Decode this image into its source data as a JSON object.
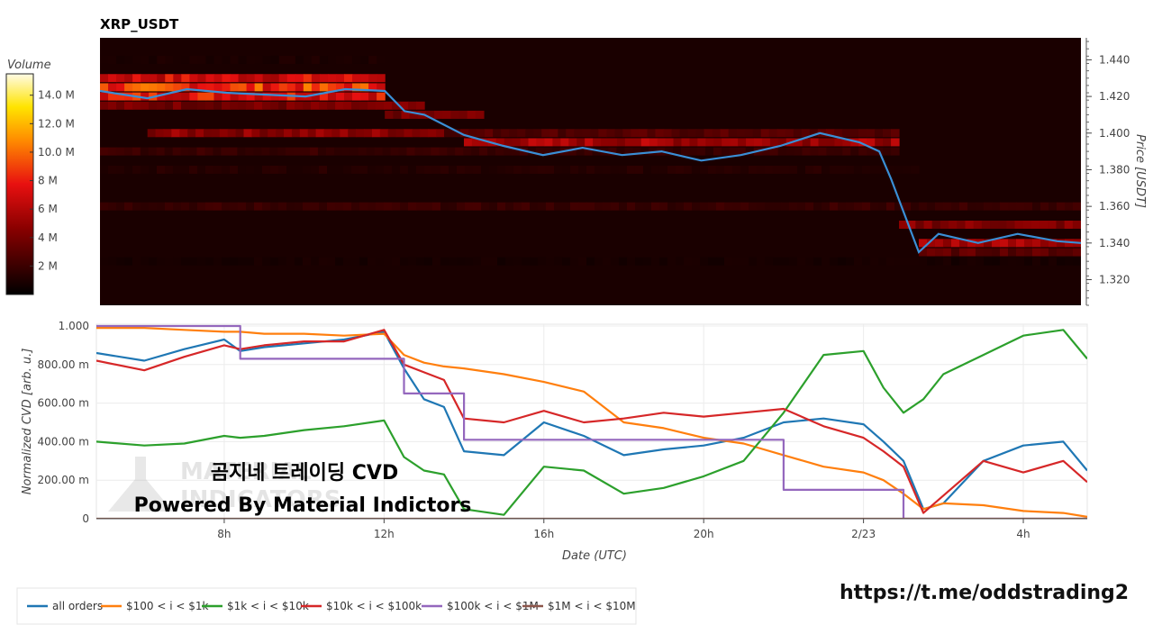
{
  "title": "XRP_USDT",
  "colorbar": {
    "label": "Volume",
    "ticks": [
      "14.0 M",
      "12.0 M",
      "10.0 M",
      "8 M",
      "6 M",
      "4 M",
      "2 M"
    ],
    "tick_values": [
      14,
      12,
      10,
      8,
      6,
      4,
      2
    ],
    "max": 15.5
  },
  "x_axis": {
    "label": "Date (UTC)",
    "ticks": [
      "8h",
      "12h",
      "16h",
      "20h",
      "2/23",
      "4h"
    ],
    "tick_hours": [
      8,
      12,
      16,
      20,
      24,
      28
    ],
    "range_hours": [
      4.8,
      29.6
    ]
  },
  "price_axis": {
    "label": "Price [USDT]",
    "ticks": [
      "1.440",
      "1.420",
      "1.400",
      "1.380",
      "1.360",
      "1.340",
      "1.320"
    ],
    "tick_values": [
      1.44,
      1.42,
      1.4,
      1.38,
      1.36,
      1.34,
      1.32
    ],
    "range": [
      1.306,
      1.452
    ]
  },
  "cvd_axis": {
    "label": "Normalized CVD [arb. u.]",
    "ticks": [
      "1.000",
      "800.00 m",
      "600.00 m",
      "400.00 m",
      "200.00 m",
      "0"
    ],
    "tick_values": [
      1.0,
      0.8,
      0.6,
      0.4,
      0.2,
      0.0
    ],
    "range": [
      0,
      1.0
    ]
  },
  "overlay": {
    "line1": "곰지네 트레이딩 CVD",
    "line2": "Powered By Material Indictors",
    "watermark1": "MATERIAL",
    "watermark2": "INDICATORS"
  },
  "link": "https://t.me/oddstrading2",
  "legend": [
    {
      "name": "all orders",
      "color": "#1f77b4"
    },
    {
      "name": "$100 < i < $1k",
      "color": "#ff7f0e"
    },
    {
      "name": "$1k < i < $10k",
      "color": "#2ca02c"
    },
    {
      "name": "$10k < i < $100k",
      "color": "#d62728"
    },
    {
      "name": "$100k < i < $1M",
      "color": "#9467bd"
    },
    {
      "name": "$1M < i < $10M",
      "color": "#8c564b"
    }
  ],
  "chart_data": [
    {
      "type": "heatmap",
      "title": "XRP_USDT",
      "ylabel": "Price [USDT]",
      "ylim": [
        1.306,
        1.452
      ],
      "colorbar_label": "Volume",
      "price_line": {
        "name": "price",
        "color": "#3a8fd6",
        "x_hours": [
          4.8,
          6.0,
          7.0,
          8.0,
          9.0,
          10.0,
          11.0,
          12.0,
          12.5,
          13.0,
          14.0,
          15.0,
          16.0,
          17.0,
          18.0,
          19.0,
          20.0,
          21.0,
          22.0,
          23.0,
          24.0,
          24.5,
          24.8,
          25.5,
          26.0,
          27.0,
          28.0,
          29.0,
          29.6
        ],
        "price": [
          1.423,
          1.419,
          1.424,
          1.422,
          1.421,
          1.42,
          1.424,
          1.423,
          1.412,
          1.41,
          1.399,
          1.393,
          1.388,
          1.392,
          1.388,
          1.39,
          1.385,
          1.388,
          1.393,
          1.4,
          1.395,
          1.39,
          1.375,
          1.335,
          1.345,
          1.34,
          1.345,
          1.341,
          1.34
        ]
      },
      "bands": [
        {
          "price": 1.44,
          "start": 4.8,
          "end": 12.0,
          "level": 0.06
        },
        {
          "price": 1.43,
          "start": 4.8,
          "end": 12.0,
          "level": 0.45
        },
        {
          "price": 1.425,
          "start": 4.8,
          "end": 12.0,
          "level": 0.55
        },
        {
          "price": 1.42,
          "start": 4.8,
          "end": 12.0,
          "level": 0.5
        },
        {
          "price": 1.415,
          "start": 4.8,
          "end": 13.0,
          "level": 0.25
        },
        {
          "price": 1.41,
          "start": 12.0,
          "end": 14.5,
          "level": 0.25
        },
        {
          "price": 1.4,
          "start": 6.0,
          "end": 13.5,
          "level": 0.3
        },
        {
          "price": 1.4,
          "start": 13.5,
          "end": 25.0,
          "level": 0.18
        },
        {
          "price": 1.395,
          "start": 14.0,
          "end": 25.0,
          "level": 0.35
        },
        {
          "price": 1.39,
          "start": 4.8,
          "end": 25.0,
          "level": 0.12
        },
        {
          "price": 1.38,
          "start": 4.8,
          "end": 25.5,
          "level": 0.08
        },
        {
          "price": 1.36,
          "start": 4.8,
          "end": 29.6,
          "level": 0.12
        },
        {
          "price": 1.35,
          "start": 25.0,
          "end": 29.6,
          "level": 0.28
        },
        {
          "price": 1.34,
          "start": 25.5,
          "end": 29.6,
          "level": 0.35
        },
        {
          "price": 1.335,
          "start": 25.5,
          "end": 29.6,
          "level": 0.2
        },
        {
          "price": 1.33,
          "start": 4.8,
          "end": 29.6,
          "level": 0.05
        }
      ]
    },
    {
      "type": "line",
      "xlabel": "Date (UTC)",
      "ylabel": "Normalized CVD [arb. u.]",
      "ylim": [
        0,
        1.0
      ],
      "x_hours": [
        4.8,
        6.0,
        7.0,
        8.0,
        8.4,
        9.0,
        10.0,
        11.0,
        12.0,
        12.5,
        13.0,
        13.5,
        14.0,
        15.0,
        16.0,
        17.0,
        18.0,
        19.0,
        20.0,
        21.0,
        22.0,
        23.0,
        24.0,
        24.5,
        25.0,
        25.5,
        26.0,
        27.0,
        28.0,
        29.0,
        29.6
      ],
      "series": [
        {
          "name": "all orders",
          "color": "#1f77b4",
          "values": [
            0.86,
            0.82,
            0.88,
            0.93,
            0.87,
            0.89,
            0.91,
            0.93,
            0.97,
            0.78,
            0.62,
            0.58,
            0.35,
            0.33,
            0.5,
            0.43,
            0.33,
            0.36,
            0.38,
            0.42,
            0.5,
            0.52,
            0.49,
            0.4,
            0.3,
            0.05,
            0.08,
            0.3,
            0.38,
            0.4,
            0.25
          ]
        },
        {
          "name": "$100 < i < $1k",
          "color": "#ff7f0e",
          "values": [
            0.99,
            0.99,
            0.98,
            0.97,
            0.97,
            0.96,
            0.96,
            0.95,
            0.96,
            0.85,
            0.81,
            0.79,
            0.78,
            0.75,
            0.71,
            0.66,
            0.5,
            0.47,
            0.42,
            0.39,
            0.33,
            0.27,
            0.24,
            0.2,
            0.13,
            0.05,
            0.08,
            0.07,
            0.04,
            0.03,
            0.01
          ]
        },
        {
          "name": "$1k < i < $10k",
          "color": "#2ca02c",
          "values": [
            0.4,
            0.38,
            0.39,
            0.43,
            0.42,
            0.43,
            0.46,
            0.48,
            0.51,
            0.32,
            0.25,
            0.23,
            0.05,
            0.02,
            0.27,
            0.25,
            0.13,
            0.16,
            0.22,
            0.3,
            0.55,
            0.85,
            0.87,
            0.68,
            0.55,
            0.62,
            0.75,
            0.85,
            0.95,
            0.98,
            0.83
          ]
        },
        {
          "name": "$10k < i < $100k",
          "color": "#d62728",
          "values": [
            0.82,
            0.77,
            0.84,
            0.9,
            0.88,
            0.9,
            0.92,
            0.92,
            0.98,
            0.8,
            0.76,
            0.72,
            0.52,
            0.5,
            0.56,
            0.5,
            0.52,
            0.55,
            0.53,
            0.55,
            0.57,
            0.48,
            0.42,
            0.35,
            0.27,
            0.03,
            0.12,
            0.3,
            0.24,
            0.3,
            0.19
          ]
        },
        {
          "name": "$100k < i < $1M",
          "color": "#9467bd",
          "values": [
            1.0,
            1.0,
            1.0,
            1.0,
            0.83,
            0.83,
            0.83,
            0.83,
            0.83,
            0.65,
            0.65,
            0.65,
            0.41,
            0.41,
            0.41,
            0.41,
            0.41,
            0.41,
            0.41,
            0.41,
            0.15,
            0.15,
            0.15,
            0.15,
            0.0,
            0.0,
            0.0,
            0.0,
            0.0,
            0.0,
            0.0
          ]
        },
        {
          "name": "$1M < i < $10M",
          "color": "#8c564b",
          "values": [
            0.0,
            0.0,
            0.0,
            0.0,
            0.0,
            0.0,
            0.0,
            0.0,
            0.0,
            0.0,
            0.0,
            0.0,
            0.0,
            0.0,
            0.0,
            0.0,
            0.0,
            0.0,
            0.0,
            0.0,
            0.0,
            0.0,
            0.0,
            0.0,
            0.0,
            0.0,
            0.0,
            0.0,
            0.0,
            0.0,
            0.0
          ]
        }
      ]
    }
  ]
}
